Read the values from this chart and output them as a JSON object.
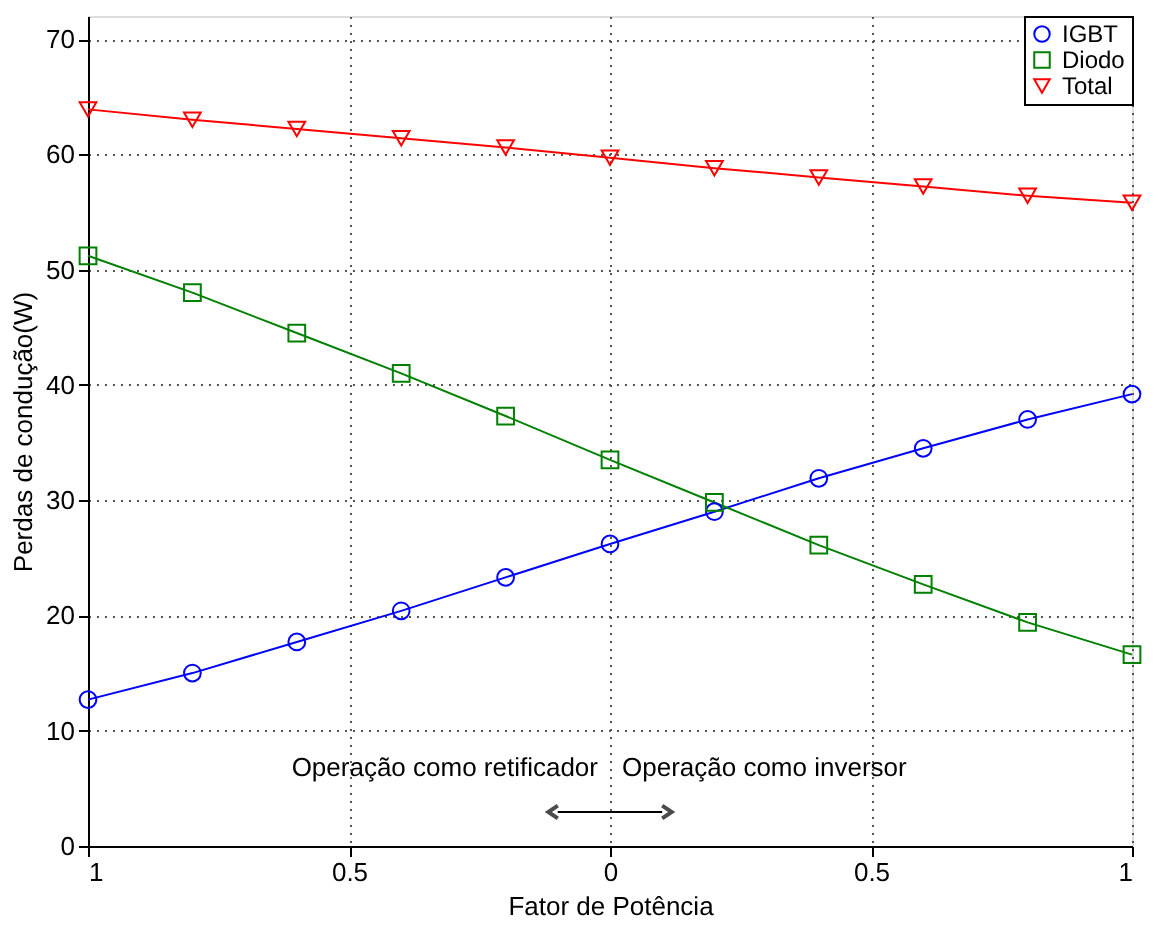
{
  "chart_data": {
    "type": "line",
    "xlabel": "Fator de Potência",
    "ylabel": "Perdas de condução(W)",
    "x": [
      -1,
      -0.8,
      -0.6,
      -0.4,
      -0.2,
      0,
      0.2,
      0.4,
      0.6,
      0.8,
      1
    ],
    "series": [
      {
        "name": "IGBT",
        "color": "#0000ff",
        "marker": "circle",
        "values": [
          12.7,
          15.0,
          17.7,
          20.4,
          23.3,
          26.2,
          29.0,
          31.9,
          34.5,
          37.0,
          39.2
        ]
      },
      {
        "name": "Diodo",
        "color": "#008000",
        "marker": "square",
        "values": [
          51.2,
          48.0,
          44.5,
          41.0,
          37.3,
          33.5,
          29.8,
          26.1,
          22.7,
          19.4,
          16.6
        ]
      },
      {
        "name": "Total",
        "color": "#ff0000",
        "marker": "triangle-down",
        "values": [
          63.9,
          63.0,
          62.2,
          61.4,
          60.6,
          59.7,
          58.8,
          58.0,
          57.2,
          56.4,
          55.8
        ]
      }
    ],
    "xlim": [
      -1,
      1
    ],
    "xticks": [
      {
        "value": -1,
        "label": "1"
      },
      {
        "value": -0.5,
        "label": "0.5"
      },
      0,
      0.5,
      1
    ],
    "ylim": [
      0,
      72
    ],
    "yticks": [
      0,
      10,
      20,
      30,
      40,
      50,
      60,
      70
    ],
    "grid": true,
    "legend": "top right",
    "line_style": "solid",
    "annotations": [
      "Operação como retificador",
      "Operação como inversor"
    ]
  }
}
